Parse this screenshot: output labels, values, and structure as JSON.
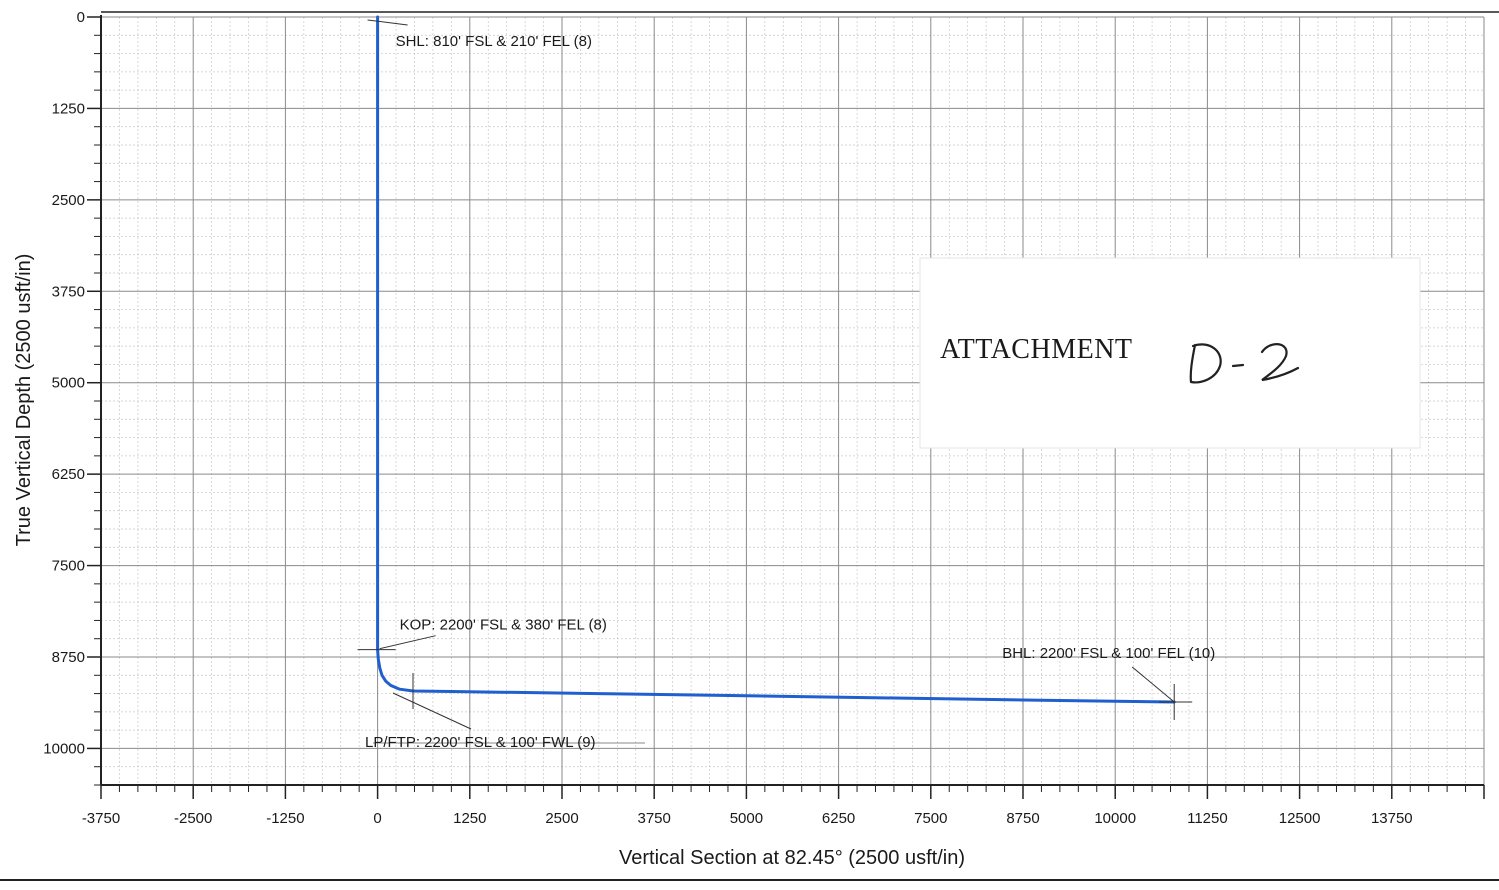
{
  "chart_data": {
    "type": "line",
    "title": "",
    "xlabel": "Vertical Section at 82.45° (2500 usft/in)",
    "ylabel": "True Vertical Depth (2500 usft/in)",
    "xlim": [
      -3750,
      15000
    ],
    "ylim": [
      10500,
      0
    ],
    "x_ticks": [
      "-3750",
      "-2500",
      "-1250",
      "0",
      "1250",
      "2500",
      "3750",
      "5000",
      "6250",
      "7500",
      "8750",
      "10000",
      "11250",
      "12500",
      "13750"
    ],
    "y_ticks": [
      "0",
      "1250",
      "2500",
      "3750",
      "5000",
      "6250",
      "7500",
      "8750",
      "10000"
    ],
    "grid": true,
    "series": [
      {
        "color": "#1f5fd0",
        "x": [
          0,
          0,
          10,
          30,
          60,
          110,
          180,
          300,
          480,
          1000,
          3000,
          5000,
          7000,
          9000,
          10800
        ],
        "y": [
          0,
          8650,
          8780,
          8900,
          9000,
          9080,
          9140,
          9190,
          9215,
          9222,
          9250,
          9280,
          9310,
          9340,
          9365
        ]
      }
    ],
    "annotations": [
      {
        "text": "SHL: 810' FSL & 210' FEL (8)",
        "x": 0,
        "y": 0
      },
      {
        "text": "KOP: 2200' FSL & 380' FEL (8)",
        "x": 0,
        "y": 8650
      },
      {
        "text": "LP/FTP: 2200' FSL & 100' FWL (9)",
        "x": 480,
        "y": 9215
      },
      {
        "text": "BHL: 2200' FSL & 100' FEL (10)",
        "x": 10800,
        "y": 9365
      }
    ],
    "stamp": {
      "text": "ATTACHMENT",
      "handwritten": "D-2"
    }
  },
  "colors": {
    "trajectory": "#1f5fd0",
    "grid_major": "#8a8a8a",
    "grid_minor": "#c8c8c8",
    "axis": "#222222"
  }
}
